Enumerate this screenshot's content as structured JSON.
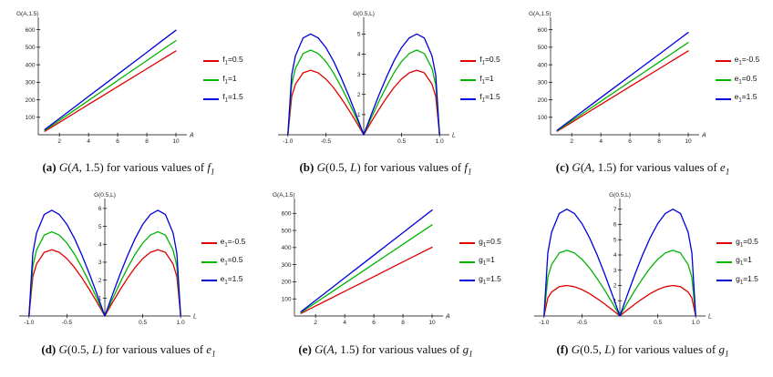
{
  "page": {
    "background": "#ffffff",
    "axis_color": "#000000"
  },
  "chart_data": [
    {
      "id": "a",
      "type": "line",
      "axis": "left",
      "title": "",
      "ylabel": "G(A,1.5)",
      "xlabel": "A",
      "xlim": [
        0.55,
        10.75
      ],
      "ylim": [
        0,
        645
      ],
      "xticks": [
        2,
        4,
        6,
        8,
        10
      ],
      "xtick_labels": [
        "2",
        "4",
        "6",
        "8",
        "10"
      ],
      "yticks": [
        100,
        200,
        300,
        400,
        500,
        600
      ],
      "legend_position": "right",
      "grid": false,
      "x": [
        1,
        2,
        3,
        4,
        5,
        6,
        7,
        8,
        9,
        10
      ],
      "series": [
        {
          "name": "f1=0.5",
          "color": "#e00000",
          "values": [
            20,
            71,
            122,
            173,
            224,
            275,
            326,
            377,
            428,
            479
          ]
        },
        {
          "name": "f1=1",
          "color": "#00b400",
          "values": [
            25,
            82,
            139,
            196,
            253,
            310,
            367,
            424,
            481,
            538
          ]
        },
        {
          "name": "f1=1.5",
          "color": "#0000dd",
          "values": [
            30,
            93,
            156,
            219,
            282,
            345,
            408,
            471,
            534,
            597
          ]
        }
      ]
    },
    {
      "id": "b",
      "type": "line",
      "axis": "center",
      "title": "",
      "ylabel": "G(0.5,L)",
      "xlabel": "L",
      "xlim": [
        -1.13,
        1.13
      ],
      "ylim": [
        0,
        5.6
      ],
      "xticks": [
        -1.0,
        -0.5,
        0.5,
        1.0
      ],
      "xtick_labels": [
        "-1.0",
        "-0.5",
        "0.5",
        "1.0"
      ],
      "yticks": [
        1,
        2,
        3,
        4,
        5
      ],
      "legend_position": "right",
      "grid": false,
      "x": [
        -1,
        -0.95,
        -0.9,
        -0.8,
        -0.7,
        -0.6,
        -0.5,
        -0.4,
        -0.3,
        -0.2,
        -0.1,
        0,
        0.1,
        0.2,
        0.3,
        0.4,
        0.5,
        0.6,
        0.7,
        0.8,
        0.9,
        0.95,
        1
      ],
      "series": [
        {
          "name": "f1=0.5",
          "color": "#e00000",
          "values": [
            0,
            1.9,
            2.51,
            3.07,
            3.2,
            3.07,
            2.77,
            2.35,
            1.83,
            1.25,
            0.64,
            0,
            0.64,
            1.25,
            1.83,
            2.35,
            2.77,
            3.07,
            3.2,
            3.07,
            2.51,
            1.9,
            0
          ]
        },
        {
          "name": "f1=1",
          "color": "#00b400",
          "values": [
            0,
            2.49,
            3.29,
            4.03,
            4.2,
            4.03,
            3.64,
            3.08,
            2.4,
            1.65,
            0.84,
            0,
            0.84,
            1.65,
            2.4,
            3.08,
            3.64,
            4.03,
            4.2,
            4.03,
            3.29,
            2.49,
            0
          ]
        },
        {
          "name": "f1=1.5",
          "color": "#0000dd",
          "values": [
            0,
            2.97,
            3.92,
            4.8,
            5.0,
            4.8,
            4.33,
            3.67,
            2.86,
            1.96,
            1.0,
            0,
            1.0,
            1.96,
            2.86,
            3.67,
            4.33,
            4.8,
            5.0,
            4.8,
            3.92,
            2.97,
            0
          ]
        }
      ]
    },
    {
      "id": "c",
      "type": "line",
      "axis": "left",
      "title": "",
      "ylabel": "G(A,1.5)",
      "xlabel": "A",
      "xlim": [
        0.55,
        10.75
      ],
      "ylim": [
        0,
        645
      ],
      "xticks": [
        2,
        4,
        6,
        8,
        10
      ],
      "xtick_labels": [
        "2",
        "4",
        "6",
        "8",
        "10"
      ],
      "yticks": [
        100,
        200,
        300,
        400,
        500,
        600
      ],
      "legend_position": "right",
      "grid": false,
      "x": [
        1,
        2,
        3,
        4,
        5,
        6,
        7,
        8,
        9,
        10
      ],
      "series": [
        {
          "name": "e1=-0.5",
          "color": "#e00000",
          "values": [
            20,
            71,
            122,
            173,
            224,
            275,
            326,
            377,
            428,
            479
          ]
        },
        {
          "name": "e1=0.5",
          "color": "#00b400",
          "values": [
            23,
            79,
            135,
            191,
            247,
            303,
            359,
            415,
            471,
            527
          ]
        },
        {
          "name": "e1=1.5",
          "color": "#0000dd",
          "values": [
            26,
            88,
            150,
            212,
            274,
            336,
            398,
            460,
            522,
            584
          ]
        }
      ]
    },
    {
      "id": "d",
      "type": "line",
      "axis": "center",
      "title": "",
      "ylabel": "G(0.5,L)",
      "xlabel": "L",
      "xlim": [
        -1.13,
        1.13
      ],
      "ylim": [
        0,
        6.3
      ],
      "xticks": [
        -1.0,
        -0.5,
        0.5,
        1.0
      ],
      "xtick_labels": [
        "-1.0",
        "-0.5",
        "0.5",
        "1.0"
      ],
      "yticks": [
        1,
        2,
        3,
        4,
        5,
        6
      ],
      "legend_position": "right",
      "grid": false,
      "x": [
        -1,
        -0.95,
        -0.9,
        -0.8,
        -0.7,
        -0.6,
        -0.5,
        -0.4,
        -0.3,
        -0.2,
        -0.1,
        0,
        0.1,
        0.2,
        0.3,
        0.4,
        0.5,
        0.6,
        0.7,
        0.8,
        0.9,
        0.95,
        1
      ],
      "series": [
        {
          "name": "e1=-0.5",
          "color": "#e00000",
          "values": [
            0,
            2.2,
            2.9,
            3.55,
            3.7,
            3.55,
            3.2,
            2.71,
            2.12,
            1.45,
            0.74,
            0,
            0.74,
            1.45,
            2.12,
            2.71,
            3.2,
            3.55,
            3.7,
            3.55,
            2.9,
            2.2,
            0
          ]
        },
        {
          "name": "e1=0.5",
          "color": "#00b400",
          "values": [
            0,
            2.79,
            3.68,
            4.51,
            4.7,
            4.51,
            4.07,
            3.45,
            2.69,
            1.84,
            0.94,
            0,
            0.94,
            1.84,
            2.69,
            3.45,
            4.07,
            4.51,
            4.7,
            4.51,
            3.68,
            2.79,
            0
          ]
        },
        {
          "name": "e1=1.5",
          "color": "#0000dd",
          "values": [
            0,
            3.5,
            4.63,
            5.66,
            5.9,
            5.66,
            5.11,
            4.33,
            3.38,
            2.31,
            1.18,
            0,
            1.18,
            2.31,
            3.38,
            4.33,
            5.11,
            5.66,
            5.9,
            5.66,
            4.63,
            3.5,
            0
          ]
        }
      ]
    },
    {
      "id": "e",
      "type": "line",
      "axis": "left",
      "title": "",
      "ylabel": "G(A,1.5)",
      "xlabel": "A",
      "xlim": [
        0.55,
        10.75
      ],
      "ylim": [
        0,
        660
      ],
      "xticks": [
        2,
        4,
        6,
        8,
        10
      ],
      "xtick_labels": [
        "2",
        "4",
        "6",
        "8",
        "10"
      ],
      "yticks": [
        100,
        200,
        300,
        400,
        500,
        600
      ],
      "legend_position": "right",
      "grid": false,
      "x": [
        1,
        2,
        3,
        4,
        5,
        6,
        7,
        8,
        9,
        10
      ],
      "series": [
        {
          "name": "g1=0.5",
          "color": "#e00000",
          "values": [
            15,
            58,
            101,
            144,
            187,
            230,
            273,
            316,
            359,
            402
          ]
        },
        {
          "name": "g1=1",
          "color": "#00b400",
          "values": [
            20,
            77,
            134,
            191,
            248,
            305,
            362,
            419,
            476,
            533
          ]
        },
        {
          "name": "g1=1.5",
          "color": "#0000dd",
          "values": [
            25,
            91,
            157,
            223,
            289,
            355,
            421,
            487,
            553,
            619
          ]
        }
      ]
    },
    {
      "id": "f",
      "type": "line",
      "axis": "center",
      "title": "",
      "ylabel": "G(0.5,L)",
      "xlabel": "L",
      "xlim": [
        -1.13,
        1.13
      ],
      "ylim": [
        0,
        7.4
      ],
      "xticks": [
        -1.0,
        -0.5,
        0.5,
        1.0
      ],
      "xtick_labels": [
        "-1.0",
        "-0.5",
        "0.5",
        "1.0"
      ],
      "yticks": [
        1,
        2,
        3,
        4,
        5,
        6,
        7
      ],
      "legend_position": "right",
      "grid": false,
      "x": [
        -1,
        -0.95,
        -0.9,
        -0.8,
        -0.7,
        -0.6,
        -0.5,
        -0.4,
        -0.3,
        -0.2,
        -0.1,
        0,
        0.1,
        0.2,
        0.3,
        0.4,
        0.5,
        0.6,
        0.7,
        0.8,
        0.9,
        0.95,
        1
      ],
      "series": [
        {
          "name": "g1=0.5",
          "color": "#e00000",
          "values": [
            0,
            1.19,
            1.57,
            1.92,
            2.0,
            1.92,
            1.73,
            1.47,
            1.14,
            0.78,
            0.4,
            0,
            0.4,
            0.78,
            1.14,
            1.47,
            1.73,
            1.92,
            2.0,
            1.92,
            1.57,
            1.19,
            0
          ]
        },
        {
          "name": "g1=1",
          "color": "#00b400",
          "values": [
            0,
            2.55,
            3.37,
            4.13,
            4.3,
            4.13,
            3.72,
            3.15,
            2.46,
            1.69,
            0.86,
            0,
            0.86,
            1.69,
            2.46,
            3.15,
            3.72,
            4.13,
            4.3,
            4.13,
            3.37,
            2.55,
            0
          ]
        },
        {
          "name": "g1=1.5",
          "color": "#0000dd",
          "values": [
            0,
            4.15,
            5.49,
            6.72,
            7.0,
            6.72,
            6.06,
            5.13,
            4.01,
            2.74,
            1.39,
            0,
            1.39,
            2.74,
            4.01,
            5.13,
            6.06,
            6.72,
            7.0,
            6.72,
            5.49,
            4.15,
            0
          ]
        }
      ]
    }
  ],
  "captions": [
    {
      "segments": [
        {
          "t": "(a) ",
          "s": "b"
        },
        {
          "t": "G",
          "s": "i"
        },
        {
          "t": "(",
          "s": "p"
        },
        {
          "t": "A",
          "s": "i"
        },
        {
          "t": ", 1.5) for various values of ",
          "s": "p"
        },
        {
          "t": "f",
          "s": "i"
        },
        {
          "t": "1",
          "s": "sub"
        }
      ]
    },
    {
      "segments": [
        {
          "t": "(b) ",
          "s": "b"
        },
        {
          "t": "G",
          "s": "i"
        },
        {
          "t": "(0.5, ",
          "s": "p"
        },
        {
          "t": "L",
          "s": "i"
        },
        {
          "t": ") for various values of ",
          "s": "p"
        },
        {
          "t": "f",
          "s": "i"
        },
        {
          "t": "1",
          "s": "sub"
        }
      ]
    },
    {
      "segments": [
        {
          "t": "(c) ",
          "s": "b"
        },
        {
          "t": "G",
          "s": "i"
        },
        {
          "t": "(",
          "s": "p"
        },
        {
          "t": "A",
          "s": "i"
        },
        {
          "t": ", 1.5) for various values of ",
          "s": "p"
        },
        {
          "t": "e",
          "s": "i"
        },
        {
          "t": "1",
          "s": "sub"
        }
      ]
    },
    {
      "segments": [
        {
          "t": "(d) ",
          "s": "b"
        },
        {
          "t": "G",
          "s": "i"
        },
        {
          "t": "(0.5, ",
          "s": "p"
        },
        {
          "t": "L",
          "s": "i"
        },
        {
          "t": ") for various values of ",
          "s": "p"
        },
        {
          "t": "e",
          "s": "i"
        },
        {
          "t": "1",
          "s": "sub"
        }
      ]
    },
    {
      "segments": [
        {
          "t": "(e) ",
          "s": "b"
        },
        {
          "t": "G",
          "s": "i"
        },
        {
          "t": "(",
          "s": "p"
        },
        {
          "t": "A",
          "s": "i"
        },
        {
          "t": ", 1.5) for various values of ",
          "s": "p"
        },
        {
          "t": "g",
          "s": "i"
        },
        {
          "t": "1",
          "s": "sub"
        }
      ]
    },
    {
      "segments": [
        {
          "t": "(f) ",
          "s": "b"
        },
        {
          "t": "G",
          "s": "i"
        },
        {
          "t": "(0.5, ",
          "s": "p"
        },
        {
          "t": "L",
          "s": "i"
        },
        {
          "t": ") for various values of ",
          "s": "p"
        },
        {
          "t": "g",
          "s": "i"
        },
        {
          "t": "1",
          "s": "sub"
        }
      ]
    }
  ]
}
